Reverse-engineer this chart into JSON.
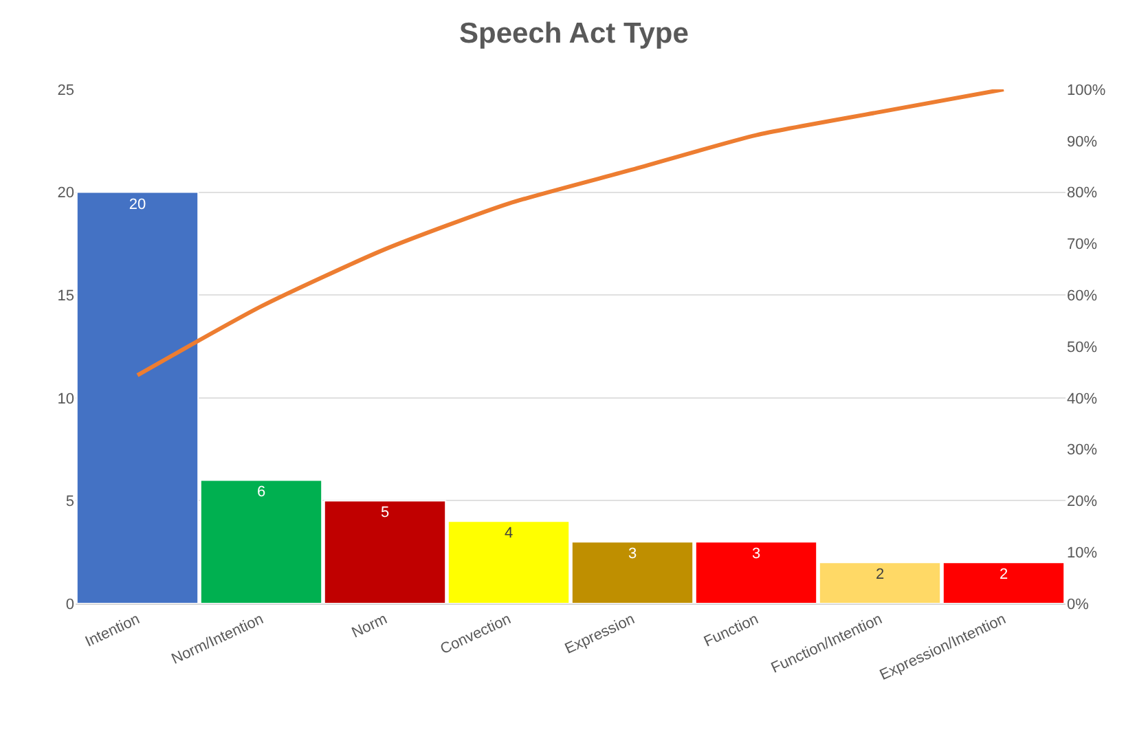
{
  "chart_data": {
    "type": "bar",
    "title": "Speech Act Type",
    "categories": [
      "Intention",
      "Norm/Intention",
      "Norm",
      "Convection",
      "Expression",
      "Function",
      "Function/Intention",
      "Expression/Intention"
    ],
    "series": [
      {
        "colors": [
          "#4472c4",
          "#00b050",
          "#c00000",
          "#ffff00",
          "#bf8f00",
          "#ff0000",
          "#ffd966",
          "#ff0000"
        ],
        "values": [
          20,
          6,
          5,
          4,
          3,
          3,
          2,
          2
        ],
        "value_labels": [
          "20",
          "6",
          "5",
          "4",
          "3",
          "3",
          "2",
          "2"
        ]
      },
      {
        "type": "line",
        "axis": "y2",
        "color": "#ed7d31",
        "values": [
          44.4,
          57.8,
          68.9,
          77.8,
          84.4,
          91.1,
          95.6,
          100
        ]
      }
    ],
    "ylim": [
      0,
      25
    ],
    "yticks": [
      0,
      5,
      10,
      15,
      20,
      25
    ],
    "y2lim": [
      0,
      100
    ],
    "y2ticks": [
      {
        "value": 0,
        "label": "0%"
      },
      {
        "value": 10,
        "label": "10%"
      },
      {
        "value": 20,
        "label": "20%"
      },
      {
        "value": 30,
        "label": "30%"
      },
      {
        "value": 40,
        "label": "40%"
      },
      {
        "value": 50,
        "label": "50%"
      },
      {
        "value": 60,
        "label": "60%"
      },
      {
        "value": 70,
        "label": "70%"
      },
      {
        "value": 80,
        "label": "80%"
      },
      {
        "value": 90,
        "label": "90%"
      },
      {
        "value": 100,
        "label": "100%"
      }
    ],
    "grid": "y",
    "marker": "none",
    "line_style": "solid"
  }
}
